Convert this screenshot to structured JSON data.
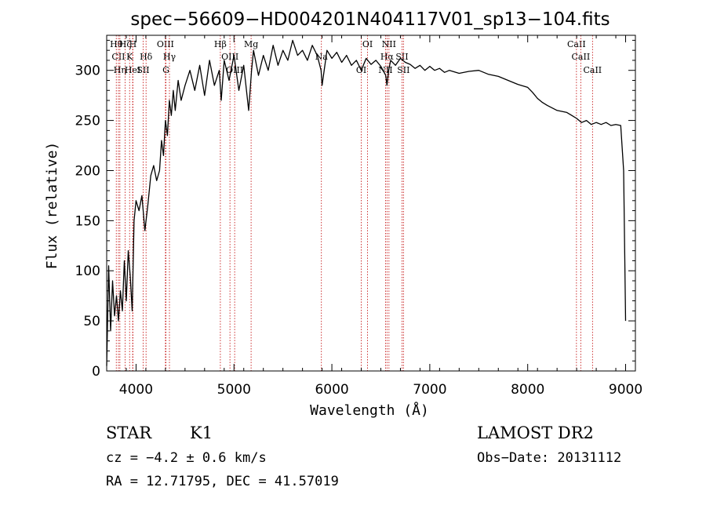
{
  "chart_data": {
    "type": "line",
    "title": "spec−56609−HD004201N404117V01_sp13−104.fits",
    "xlabel": "Wavelength (Å)",
    "ylabel": "Flux (relative)",
    "xlim": [
      3700,
      9100
    ],
    "ylim": [
      0,
      335
    ],
    "xticks": [
      4000,
      5000,
      6000,
      7000,
      8000,
      9000
    ],
    "xtick_labels": [
      "4000",
      "5000",
      "6000",
      "7000",
      "8000",
      "9000"
    ],
    "yticks": [
      0,
      50,
      100,
      150,
      200,
      250,
      300
    ],
    "ytick_labels": [
      "0",
      "50",
      "100",
      "150",
      "200",
      "250",
      "300"
    ],
    "grid": false,
    "series": [
      {
        "x": [
          3700,
          3720,
          3740,
          3760,
          3780,
          3800,
          3820,
          3840,
          3860,
          3880,
          3900,
          3920,
          3940,
          3960,
          3980,
          4000,
          4030,
          4060,
          4090,
          4120,
          4150,
          4180,
          4210,
          4240,
          4260,
          4280,
          4300,
          4320,
          4340,
          4360,
          4380,
          4400,
          4430,
          4460,
          4500,
          4550,
          4600,
          4650,
          4700,
          4750,
          4800,
          4850,
          4870,
          4900,
          4950,
          5000,
          5050,
          5100,
          5150,
          5180,
          5200,
          5250,
          5300,
          5350,
          5400,
          5450,
          5500,
          5550,
          5600,
          5650,
          5700,
          5750,
          5800,
          5850,
          5890,
          5900,
          5950,
          6000,
          6050,
          6100,
          6150,
          6200,
          6250,
          6300,
          6350,
          6400,
          6450,
          6500,
          6550,
          6563,
          6580,
          6600,
          6650,
          6700,
          6750,
          6800,
          6850,
          6900,
          6950,
          7000,
          7050,
          7100,
          7150,
          7200,
          7300,
          7400,
          7500,
          7600,
          7700,
          7800,
          7900,
          8000,
          8050,
          8100,
          8150,
          8200,
          8300,
          8400,
          8450,
          8500,
          8550,
          8600,
          8650,
          8700,
          8750,
          8800,
          8850,
          8900,
          8950,
          8980,
          9000
        ],
        "y": [
          5,
          105,
          40,
          90,
          55,
          75,
          50,
          80,
          60,
          110,
          70,
          120,
          95,
          60,
          150,
          170,
          160,
          175,
          140,
          165,
          195,
          205,
          190,
          200,
          230,
          215,
          250,
          235,
          270,
          255,
          280,
          260,
          290,
          270,
          285,
          300,
          280,
          305,
          275,
          310,
          285,
          300,
          270,
          310,
          290,
          315,
          280,
          305,
          260,
          300,
          320,
          295,
          315,
          300,
          325,
          305,
          320,
          310,
          330,
          315,
          320,
          310,
          325,
          315,
          300,
          285,
          320,
          312,
          318,
          308,
          315,
          305,
          310,
          300,
          312,
          306,
          310,
          304,
          295,
          285,
          300,
          310,
          305,
          312,
          308,
          306,
          302,
          305,
          300,
          304,
          300,
          302,
          298,
          300,
          297,
          299,
          300,
          296,
          294,
          290,
          286,
          283,
          278,
          272,
          268,
          265,
          260,
          258,
          255,
          252,
          248,
          250,
          246,
          248,
          246,
          248,
          245,
          246,
          245,
          200,
          50
        ]
      }
    ],
    "line_markers": [
      {
        "label": "Hθ",
        "x": 3798
      },
      {
        "label": "CII",
        "x": 3820
      },
      {
        "label": "Hη",
        "x": 3835
      },
      {
        "label": "Hζ",
        "x": 3889
      },
      {
        "label": "K",
        "x": 3934
      },
      {
        "label": "HeI",
        "x": 3965
      },
      {
        "label": "H",
        "x": 3968
      },
      {
        "label": "Hδ",
        "x": 4102
      },
      {
        "label": "SII",
        "x": 4072
      },
      {
        "label": "OIII",
        "x": 4300
      },
      {
        "label": "Hγ",
        "x": 4341
      },
      {
        "label": "G",
        "x": 4305
      },
      {
        "label": "Hβ",
        "x": 4861
      },
      {
        "label": "OIII",
        "x": 4959
      },
      {
        "label": "OIII",
        "x": 5007
      },
      {
        "label": "Mg",
        "x": 5175
      },
      {
        "label": "Na",
        "x": 5893
      },
      {
        "label": "OI",
        "x": 6300
      },
      {
        "label": "OI",
        "x": 6364
      },
      {
        "label": "Hα",
        "x": 6563
      },
      {
        "label": "NII",
        "x": 6548
      },
      {
        "label": "NII",
        "x": 6583
      },
      {
        "label": "SII",
        "x": 6716
      },
      {
        "label": "SII",
        "x": 6731
      },
      {
        "label": "CaII",
        "x": 8498
      },
      {
        "label": "CaII",
        "x": 8542
      },
      {
        "label": "CaII",
        "x": 8662
      }
    ]
  },
  "info": {
    "object_type": "STAR",
    "subclass": "K1",
    "survey": "LAMOST DR2",
    "redshift": "cz = −4.2 ± 0.6 km/s",
    "obs_date": "Obs−Date: 20131112",
    "coords": "RA =  12.71795, DEC =  41.57019"
  }
}
